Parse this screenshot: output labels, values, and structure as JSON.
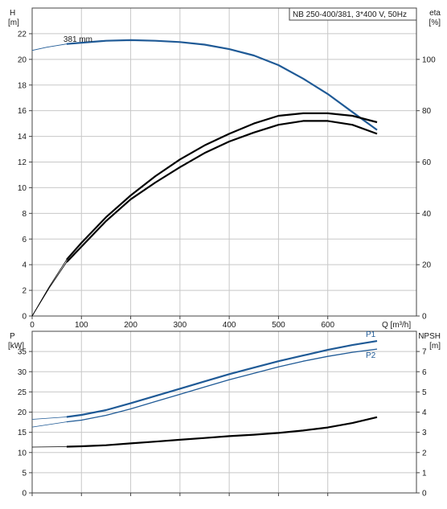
{
  "chart_data": [
    {
      "type": "line",
      "panel": "upper",
      "title": "NB 250-400/381, 3*400 V, 50Hz",
      "x_axis": {
        "label": "Q [m³/h]",
        "range": [
          0,
          780
        ],
        "ticks": [
          0,
          100,
          200,
          300,
          400,
          500,
          600
        ]
      },
      "y_left": {
        "label": "H",
        "unit": "[m]",
        "range": [
          0,
          24
        ],
        "ticks": [
          0,
          2,
          4,
          6,
          8,
          10,
          12,
          14,
          16,
          18,
          20,
          22
        ]
      },
      "y_right": {
        "label": "eta",
        "unit": "[%]",
        "range": [
          0,
          120
        ],
        "ticks": [
          0,
          20,
          40,
          60,
          80,
          100
        ]
      },
      "grid": true,
      "series": [
        {
          "name": "381 mm",
          "axis": "left",
          "color": "#1f5a96",
          "points": [
            [
              70,
              21.2
            ],
            [
              100,
              21.3
            ],
            [
              150,
              21.45
            ],
            [
              200,
              21.5
            ],
            [
              250,
              21.45
            ],
            [
              300,
              21.35
            ],
            [
              350,
              21.15
            ],
            [
              400,
              20.8
            ],
            [
              450,
              20.3
            ],
            [
              500,
              19.55
            ],
            [
              550,
              18.5
            ],
            [
              600,
              17.3
            ],
            [
              650,
              15.9
            ],
            [
              700,
              14.5
            ]
          ],
          "extension": [
            [
              0,
              20.7
            ],
            [
              30,
              20.95
            ],
            [
              70,
              21.2
            ]
          ]
        },
        {
          "axis": "right",
          "color": "#000000",
          "points": [
            [
              70,
              21
            ],
            [
              100,
              27
            ],
            [
              150,
              37
            ],
            [
              200,
              45.5
            ],
            [
              250,
              52
            ],
            [
              300,
              58
            ],
            [
              350,
              63.5
            ],
            [
              400,
              68
            ],
            [
              450,
              71.5
            ],
            [
              500,
              74.5
            ],
            [
              550,
              76
            ],
            [
              600,
              76
            ],
            [
              650,
              74.5
            ],
            [
              700,
              71
            ]
          ],
          "extension": [
            [
              0,
              0
            ],
            [
              35,
              11
            ],
            [
              70,
              21
            ]
          ]
        },
        {
          "axis": "right",
          "color": "#000000",
          "points": [
            [
              70,
              22
            ],
            [
              100,
              28.5
            ],
            [
              150,
              38.5
            ],
            [
              200,
              47
            ],
            [
              250,
              54.5
            ],
            [
              300,
              61
            ],
            [
              350,
              66.5
            ],
            [
              400,
              71
            ],
            [
              450,
              75
            ],
            [
              500,
              78
            ],
            [
              550,
              79
            ],
            [
              600,
              79
            ],
            [
              650,
              78
            ],
            [
              700,
              75.5
            ]
          ],
          "extension": [
            [
              0,
              0
            ],
            [
              35,
              11.5
            ],
            [
              70,
              22
            ]
          ]
        }
      ]
    },
    {
      "type": "line",
      "panel": "lower",
      "x_axis": {
        "range": [
          0,
          780
        ],
        "ticks": [
          0,
          100,
          200,
          300,
          400,
          500,
          600
        ]
      },
      "y_left": {
        "label": "P",
        "unit": "[kW]",
        "range": [
          0,
          40
        ],
        "ticks": [
          0,
          5,
          10,
          15,
          20,
          25,
          30,
          35
        ]
      },
      "y_right": {
        "label": "NPSH",
        "unit": "[m]",
        "range": [
          0,
          8
        ],
        "ticks": [
          0,
          1,
          2,
          3,
          4,
          5,
          6,
          7
        ]
      },
      "grid": true,
      "series": [
        {
          "name": "P1",
          "axis": "left",
          "color": "#1f5a96",
          "points": [
            [
              70,
              18.8
            ],
            [
              100,
              19.3
            ],
            [
              150,
              20.5
            ],
            [
              200,
              22.2
            ],
            [
              250,
              24.0
            ],
            [
              300,
              25.8
            ],
            [
              350,
              27.6
            ],
            [
              400,
              29.4
            ],
            [
              450,
              31.0
            ],
            [
              500,
              32.6
            ],
            [
              550,
              34.0
            ],
            [
              600,
              35.4
            ],
            [
              650,
              36.6
            ],
            [
              700,
              37.6
            ]
          ],
          "extension": [
            [
              0,
              18.2
            ],
            [
              70,
              18.8
            ]
          ]
        },
        {
          "name": "P2",
          "axis": "left",
          "color": "#1f5a96",
          "points": [
            [
              70,
              17.6
            ],
            [
              100,
              18.0
            ],
            [
              150,
              19.2
            ],
            [
              200,
              20.8
            ],
            [
              250,
              22.6
            ],
            [
              300,
              24.4
            ],
            [
              350,
              26.2
            ],
            [
              400,
              28.0
            ],
            [
              450,
              29.6
            ],
            [
              500,
              31.2
            ],
            [
              550,
              32.6
            ],
            [
              600,
              33.8
            ],
            [
              650,
              34.8
            ],
            [
              700,
              35.6
            ]
          ],
          "extension": [
            [
              0,
              16.3
            ],
            [
              70,
              17.6
            ]
          ]
        },
        {
          "axis": "right",
          "color": "#000000",
          "points": [
            [
              70,
              2.29
            ],
            [
              100,
              2.31
            ],
            [
              150,
              2.36
            ],
            [
              200,
              2.45
            ],
            [
              250,
              2.54
            ],
            [
              300,
              2.63
            ],
            [
              350,
              2.72
            ],
            [
              400,
              2.81
            ],
            [
              450,
              2.88
            ],
            [
              500,
              2.97
            ],
            [
              550,
              3.09
            ],
            [
              600,
              3.24
            ],
            [
              650,
              3.46
            ],
            [
              700,
              3.75
            ]
          ],
          "extension": [
            [
              0,
              2.27
            ],
            [
              70,
              2.29
            ]
          ]
        }
      ]
    }
  ]
}
